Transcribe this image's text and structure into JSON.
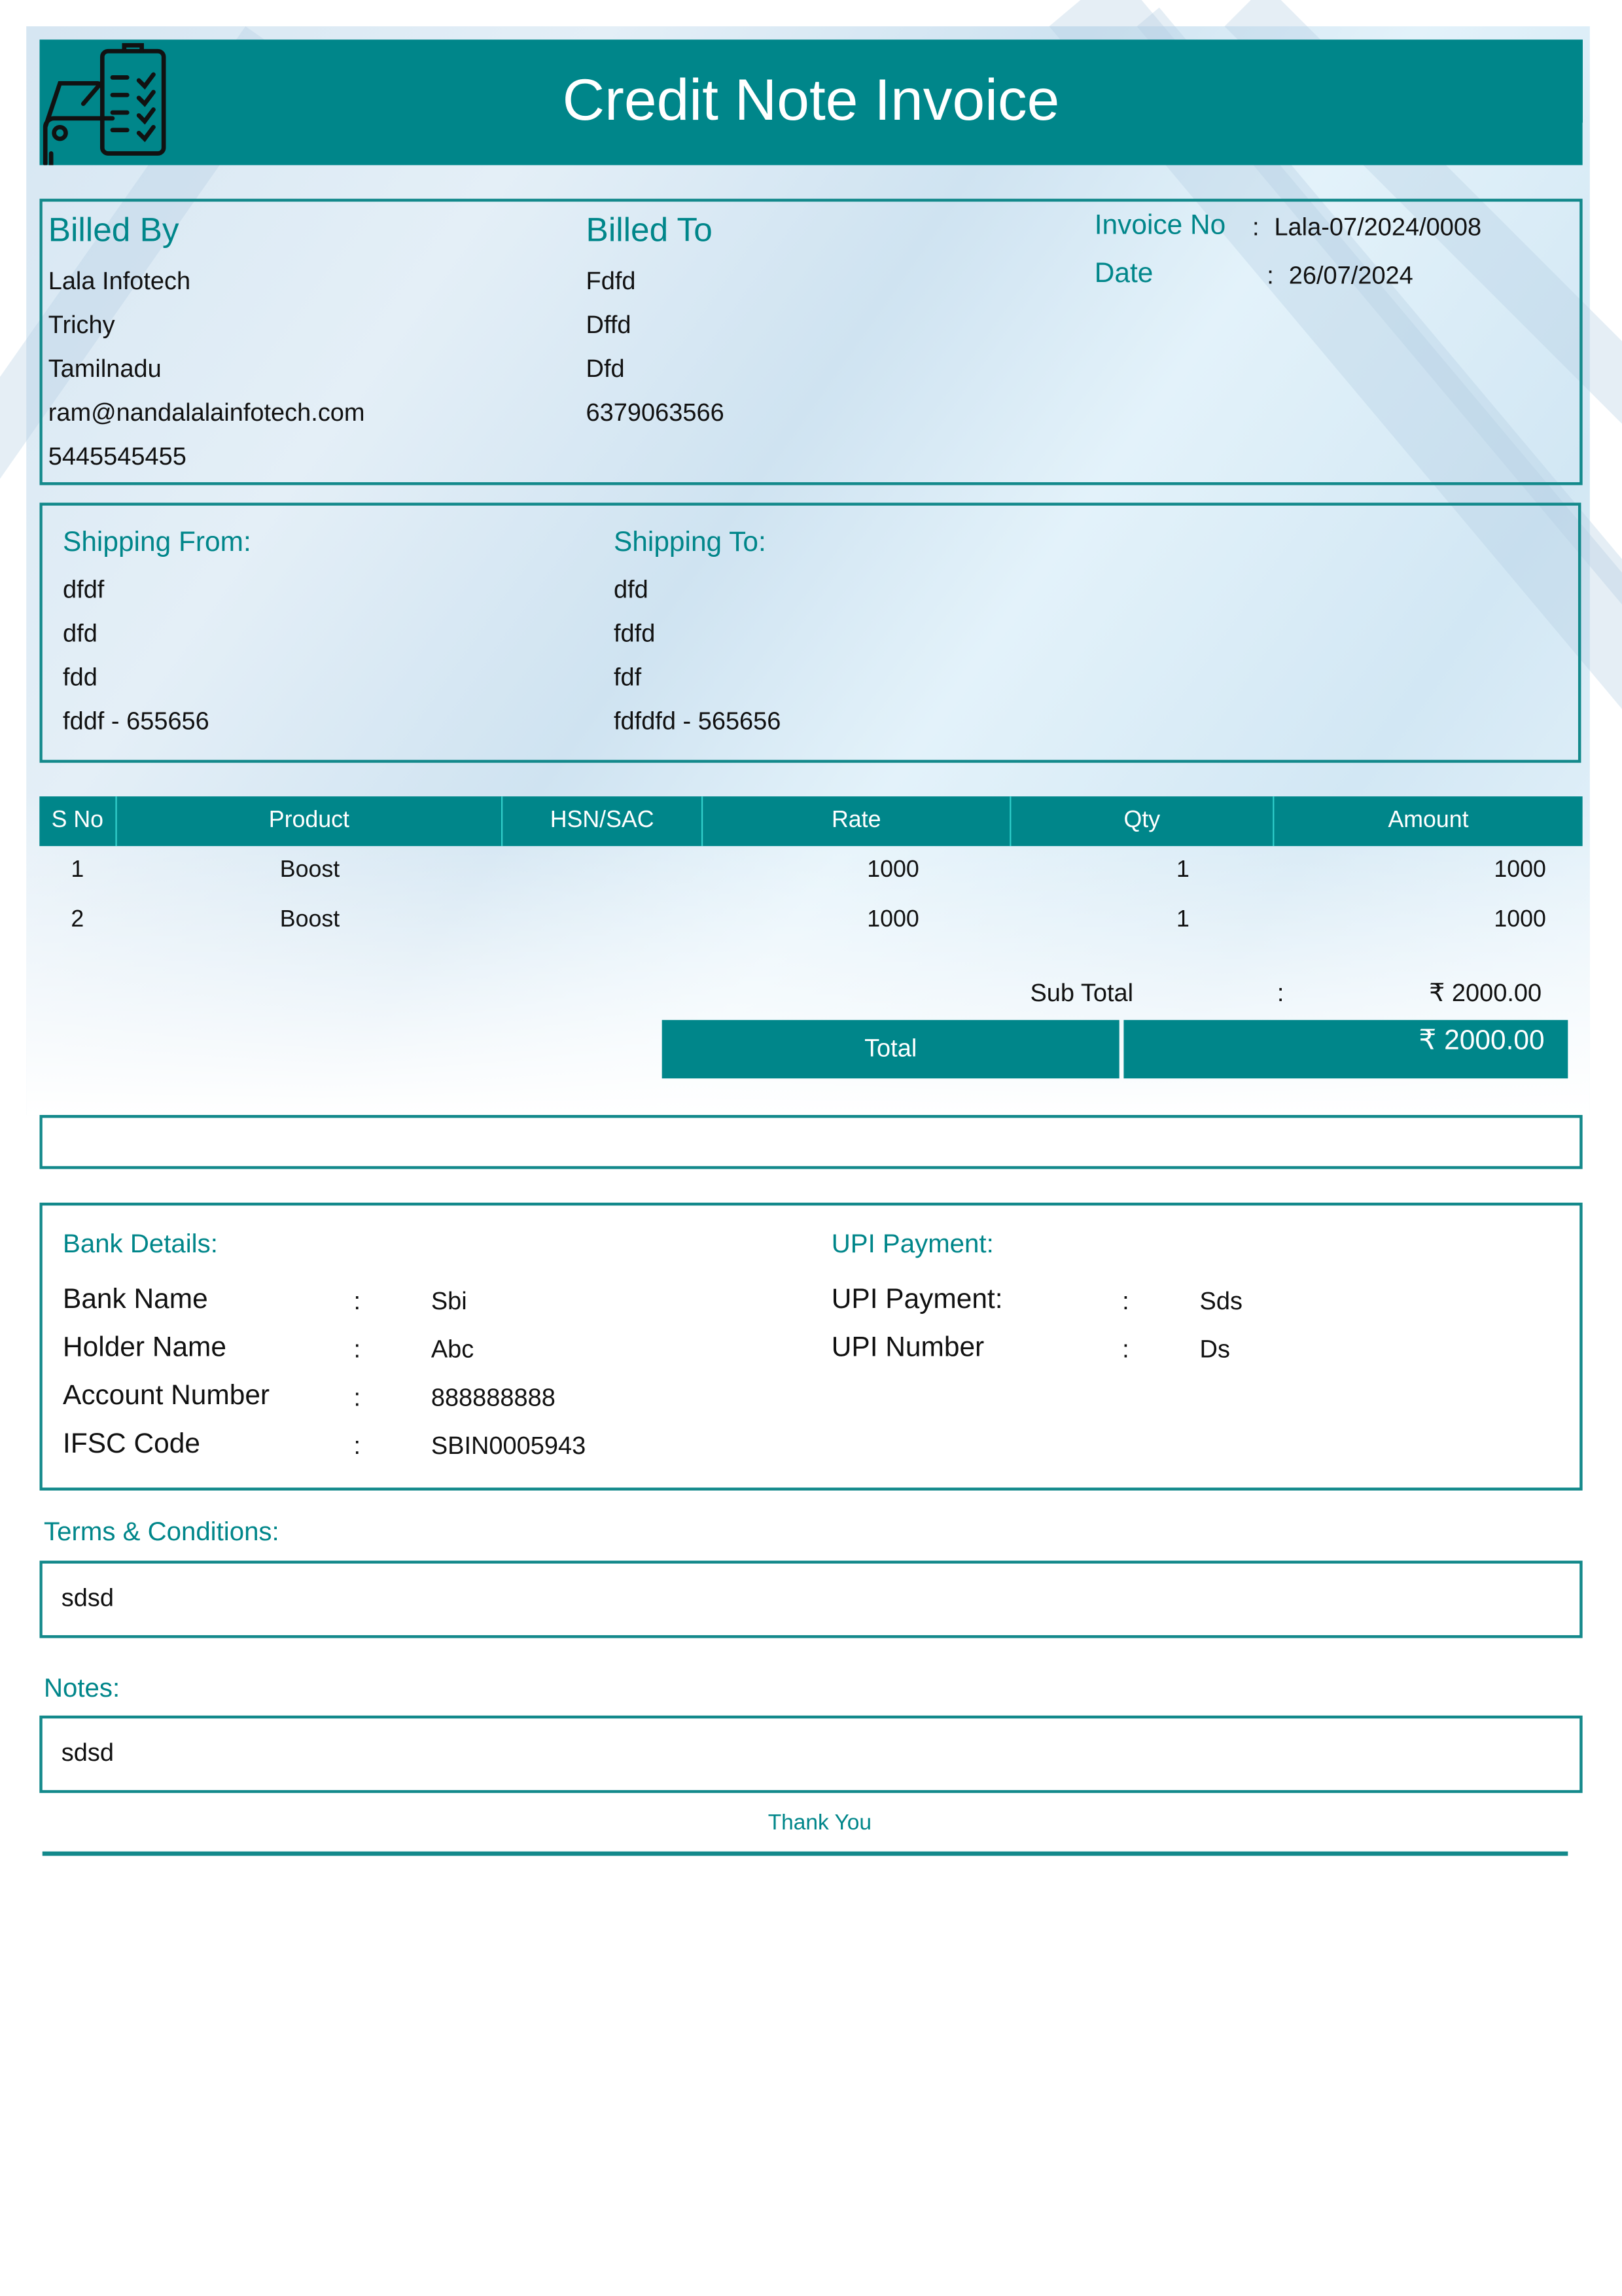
{
  "header": {
    "title": "Credit Note Invoice",
    "logo_icon": "car-checklist-icon"
  },
  "colors": {
    "accent": "#00868a"
  },
  "billed_by": {
    "heading": "Billed By",
    "lines": [
      "Lala Infotech",
      "Trichy",
      "Tamilnadu",
      "ram@nandalalainfotech.com",
      "5445545455"
    ]
  },
  "billed_to": {
    "heading": "Billed To",
    "lines": [
      "Fdfd",
      "Dffd",
      "Dfd",
      "6379063566"
    ]
  },
  "invoice": {
    "number_label": "Invoice No",
    "number_value": "Lala-07/2024/0008",
    "date_label": "Date",
    "date_value": "26/07/2024",
    "colon": ":"
  },
  "shipping_from": {
    "heading": "Shipping From:",
    "lines": [
      "dfdf",
      "dfd",
      "fdd",
      "fddf - 655656"
    ]
  },
  "shipping_to": {
    "heading": "Shipping To:",
    "lines": [
      "dfd",
      "fdfd",
      "fdf",
      "fdfdfd - 565656"
    ]
  },
  "table": {
    "headers": [
      "S No",
      "Product",
      "HSN/SAC",
      "Rate",
      "Qty",
      "Amount"
    ],
    "rows": [
      {
        "sno": "1",
        "product": "Boost",
        "hsn": "",
        "rate": "1000",
        "qty": "1",
        "amount": "1000"
      },
      {
        "sno": "2",
        "product": "Boost",
        "hsn": "",
        "rate": "1000",
        "qty": "1",
        "amount": "1000"
      }
    ]
  },
  "totals": {
    "subtotal_label": "Sub Total",
    "colon": ":",
    "subtotal_value": "₹ 2000.00",
    "total_label": "Total",
    "total_value": "₹ 2000.00"
  },
  "bank": {
    "heading": "Bank Details:",
    "rows": [
      {
        "label": "Bank Name",
        "value": "Sbi"
      },
      {
        "label": "Holder Name",
        "value": "Abc"
      },
      {
        "label": "Account Number",
        "value": "888888888"
      },
      {
        "label": "IFSC Code",
        "value": "SBIN0005943"
      }
    ]
  },
  "upi": {
    "heading": "UPI Payment:",
    "rows": [
      {
        "label": "UPI Payment:",
        "value": "Sds"
      },
      {
        "label": "UPI Number",
        "value": "Ds"
      }
    ]
  },
  "terms": {
    "heading": "Terms & Conditions:",
    "text": "sdsd"
  },
  "notes": {
    "heading": "Notes:",
    "text": "sdsd"
  },
  "footer": {
    "thank_you": "Thank You"
  }
}
